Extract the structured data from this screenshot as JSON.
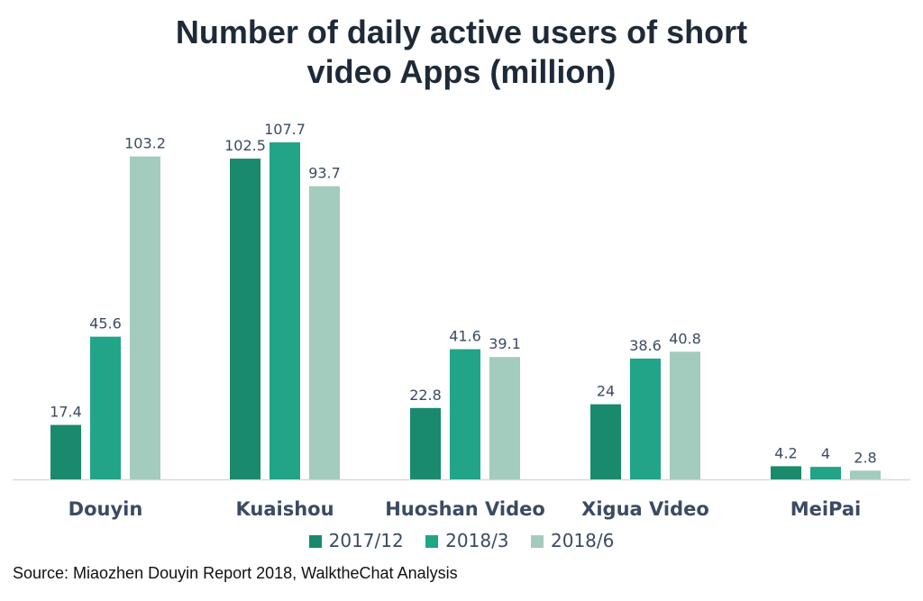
{
  "title_line1": "Number of daily active users of short",
  "title_line2": "video Apps (million)",
  "source": "Source: Miaozhen Douyin Report 2018, WalktheChat Analysis",
  "colors": {
    "series_2017_12": "#1a8a6c",
    "series_2018_3": "#21a487",
    "series_2018_6": "#a3cbbe",
    "label_text": "#3b4b63",
    "axis_line": "#d9d9d9"
  },
  "chart_data": {
    "type": "bar",
    "title": "Number of daily active users of short video Apps (million)",
    "categories": [
      "Douyin",
      "Kuaishou",
      "Huoshan Video",
      "Xigua Video",
      "MeiPai"
    ],
    "series": [
      {
        "name": "2017/12",
        "values": [
          17.4,
          102.5,
          22.8,
          24,
          4.2
        ]
      },
      {
        "name": "2018/3",
        "values": [
          45.6,
          107.7,
          41.6,
          38.6,
          4
        ]
      },
      {
        "name": "2018/6",
        "values": [
          103.2,
          93.7,
          39.1,
          40.8,
          2.8
        ]
      }
    ],
    "data_labels": [
      [
        "17.4",
        "102.5",
        "22.8",
        "24",
        "4.2"
      ],
      [
        "45.6",
        "107.7",
        "41.6",
        "38.6",
        "4"
      ],
      [
        "103.2",
        "93.7",
        "39.1",
        "40.8",
        "2.8"
      ]
    ],
    "ylim": [
      0,
      107.7
    ],
    "grid": false,
    "legend_position": "bottom",
    "xlabel": "",
    "ylabel": ""
  }
}
